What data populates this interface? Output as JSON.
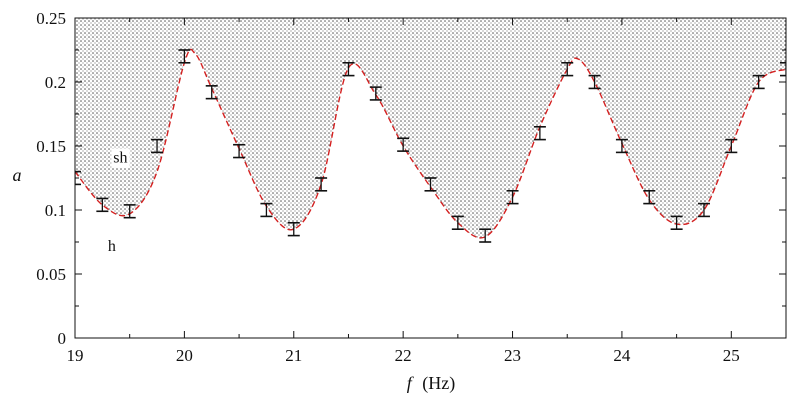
{
  "chart_data": {
    "type": "line",
    "title": "",
    "xlabel_symbol": "f",
    "xlabel_unit": "(Hz)",
    "ylabel": "a",
    "xlim": [
      19,
      25.5
    ],
    "ylim": [
      0,
      0.25
    ],
    "x_ticks": [
      "19",
      "20",
      "21",
      "22",
      "23",
      "24",
      "25"
    ],
    "y_ticks": [
      "0",
      "0.05",
      "0.1",
      "0.15",
      "0.2",
      "0.25"
    ],
    "grid": false,
    "colors": {
      "curve": "#d42020",
      "error_bar": "#111111",
      "shading_dot": "#555555"
    },
    "regions": [
      {
        "label": "sh",
        "x": 19.35,
        "y": 0.137
      },
      {
        "label": "h",
        "x": 19.3,
        "y": 0.068
      }
    ],
    "boundary_curve": {
      "x": [
        19.0,
        19.25,
        19.5,
        19.75,
        20.0,
        20.1,
        20.25,
        20.5,
        20.75,
        21.0,
        21.25,
        21.5,
        21.75,
        22.0,
        22.25,
        22.5,
        22.75,
        23.0,
        23.25,
        23.5,
        23.6,
        23.75,
        24.0,
        24.25,
        24.5,
        24.75,
        25.0,
        25.25,
        25.5
      ],
      "y": [
        0.13,
        0.104,
        0.097,
        0.13,
        0.215,
        0.222,
        0.195,
        0.148,
        0.103,
        0.085,
        0.12,
        0.211,
        0.19,
        0.15,
        0.118,
        0.09,
        0.079,
        0.11,
        0.165,
        0.21,
        0.218,
        0.2,
        0.152,
        0.108,
        0.089,
        0.1,
        0.15,
        0.2,
        0.21
      ]
    },
    "error_bars": {
      "x": [
        19.0,
        19.25,
        19.5,
        19.75,
        20.0,
        20.25,
        20.5,
        20.75,
        21.0,
        21.25,
        21.5,
        21.75,
        22.0,
        22.25,
        22.5,
        22.75,
        23.0,
        23.25,
        23.5,
        23.75,
        24.0,
        24.25,
        24.5,
        24.75,
        25.0,
        25.25,
        25.5
      ],
      "y": [
        0.125,
        0.104,
        0.099,
        0.15,
        0.22,
        0.192,
        0.146,
        0.1,
        0.085,
        0.12,
        0.21,
        0.191,
        0.151,
        0.12,
        0.09,
        0.08,
        0.11,
        0.16,
        0.21,
        0.2,
        0.15,
        0.11,
        0.09,
        0.1,
        0.15,
        0.2,
        0.21
      ],
      "err": [
        0.005,
        0.005,
        0.005,
        0.005,
        0.005,
        0.005,
        0.005,
        0.005,
        0.005,
        0.005,
        0.005,
        0.005,
        0.005,
        0.005,
        0.005,
        0.005,
        0.005,
        0.005,
        0.005,
        0.005,
        0.005,
        0.005,
        0.005,
        0.005,
        0.005,
        0.005,
        0.005
      ]
    }
  }
}
